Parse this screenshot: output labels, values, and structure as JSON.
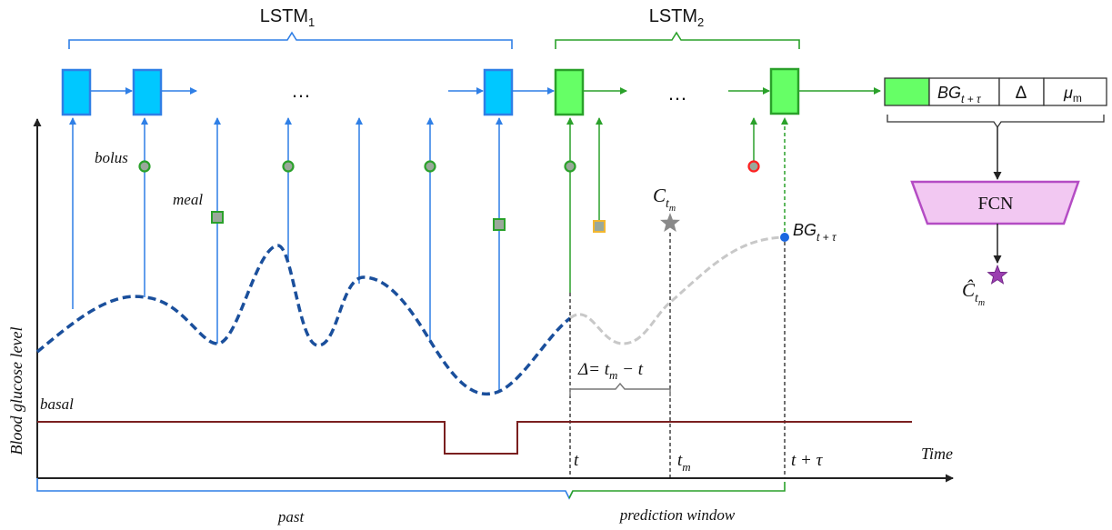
{
  "header": {
    "lstm1": {
      "base": "LSTM",
      "sub": "1"
    },
    "lstm2": {
      "base": "LSTM",
      "sub": "2"
    }
  },
  "labels": {
    "ellipsis_1": "…",
    "ellipsis_2": "…",
    "bolus": "bolus",
    "meal": "meal",
    "basal": "basal",
    "c_base": "C",
    "c_sub": "t",
    "c_subsub": "m",
    "bg_base": "BG",
    "bg_sub": "t + τ",
    "delta": "Δ= t",
    "delta_sub": "m",
    "delta_tail": " − t",
    "t": "t",
    "tm_base": "t",
    "tm_sub": "m",
    "t_tau": "t + τ",
    "time": "Time",
    "y_axis": "Blood glucose level",
    "past": "past",
    "prediction_window": "prediction window"
  },
  "output_vector": {
    "bg_base": "BG",
    "bg_sub": "t + τ",
    "delta": "Δ",
    "mu_base": "μ",
    "mu_sub": "m"
  },
  "fcn": {
    "label": "FCN",
    "out_base": "Ĉ",
    "out_sub": "t",
    "out_subsub": "m"
  },
  "colors": {
    "lstm1_blue": "#2f7fe6",
    "lstm1_fill": "#00c8ff",
    "lstm2_green": "#2aa12a",
    "lstm2_fill": "#66ff66",
    "curve_past": "#1a4f9c",
    "curve_future": "#c8c8c8",
    "basal": "#7a1f1f",
    "fcn_fill": "#f2c8f2",
    "fcn_stroke": "#b44cc4",
    "star_purple": "#9b3fb0",
    "bg_point": "#1a66e0",
    "meal_future": "#f2b730",
    "bolus_future": "#ff2020"
  }
}
